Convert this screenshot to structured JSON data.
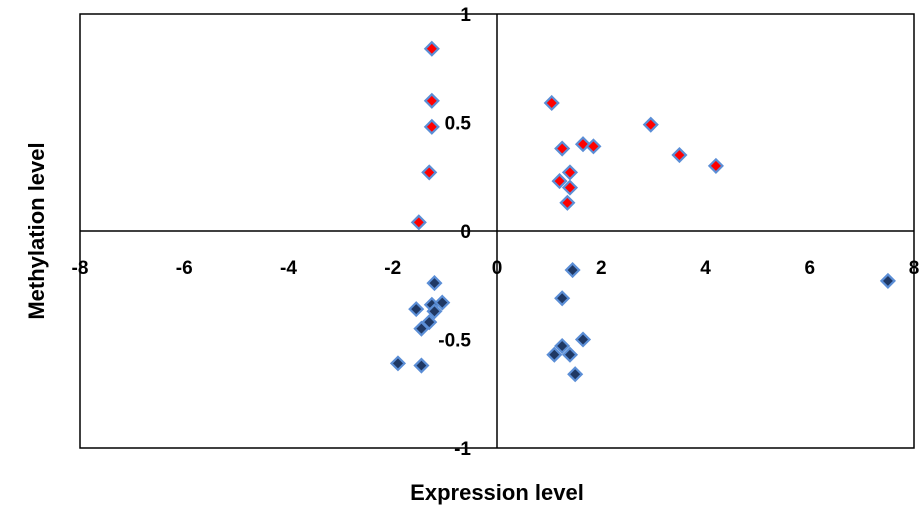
{
  "chart_data": {
    "type": "scatter",
    "title": "",
    "xlabel": "Expression level",
    "ylabel": "Methylation level",
    "xlim": [
      -8,
      8
    ],
    "ylim": [
      -1,
      1
    ],
    "x_ticks": [
      -8,
      -6,
      -4,
      -2,
      0,
      2,
      4,
      6,
      8
    ],
    "y_ticks": [
      -1,
      -0.5,
      0,
      0.5,
      1
    ],
    "x_tick_labels": [
      "-8",
      "-6",
      "-4",
      "-2",
      "0",
      "2",
      "4",
      "6",
      "8"
    ],
    "y_tick_labels": [
      "-1",
      "-0.5",
      "0",
      "0.5",
      "1"
    ],
    "grid": false,
    "legend": "none",
    "colors": {
      "positive_fill": "#ff0000",
      "negative_fill": "#1f3864",
      "marker_border": "#5b8ed6",
      "axis": "#000000"
    },
    "series": [
      {
        "color": "#ff0000",
        "points": [
          [
            -1.25,
            0.84
          ],
          [
            -1.25,
            0.6
          ],
          [
            -1.25,
            0.48
          ],
          [
            -1.3,
            0.27
          ],
          [
            -1.5,
            0.04
          ],
          [
            1.05,
            0.59
          ],
          [
            1.25,
            0.38
          ],
          [
            1.2,
            0.23
          ],
          [
            1.4,
            0.27
          ],
          [
            1.4,
            0.2
          ],
          [
            1.35,
            0.13
          ],
          [
            1.65,
            0.4
          ],
          [
            1.85,
            0.39
          ],
          [
            2.95,
            0.49
          ],
          [
            3.5,
            0.35
          ],
          [
            4.2,
            0.3
          ]
        ]
      },
      {
        "color": "#1f3864",
        "points": [
          [
            -1.2,
            -0.24
          ],
          [
            -1.55,
            -0.36
          ],
          [
            -1.25,
            -0.34
          ],
          [
            -1.05,
            -0.33
          ],
          [
            -1.2,
            -0.37
          ],
          [
            -1.3,
            -0.42
          ],
          [
            -1.45,
            -0.45
          ],
          [
            -1.9,
            -0.61
          ],
          [
            -1.45,
            -0.62
          ],
          [
            1.45,
            -0.18
          ],
          [
            1.25,
            -0.31
          ],
          [
            1.65,
            -0.5
          ],
          [
            1.25,
            -0.53
          ],
          [
            1.1,
            -0.57
          ],
          [
            1.4,
            -0.57
          ],
          [
            1.5,
            -0.66
          ],
          [
            7.5,
            -0.23
          ]
        ]
      }
    ]
  }
}
